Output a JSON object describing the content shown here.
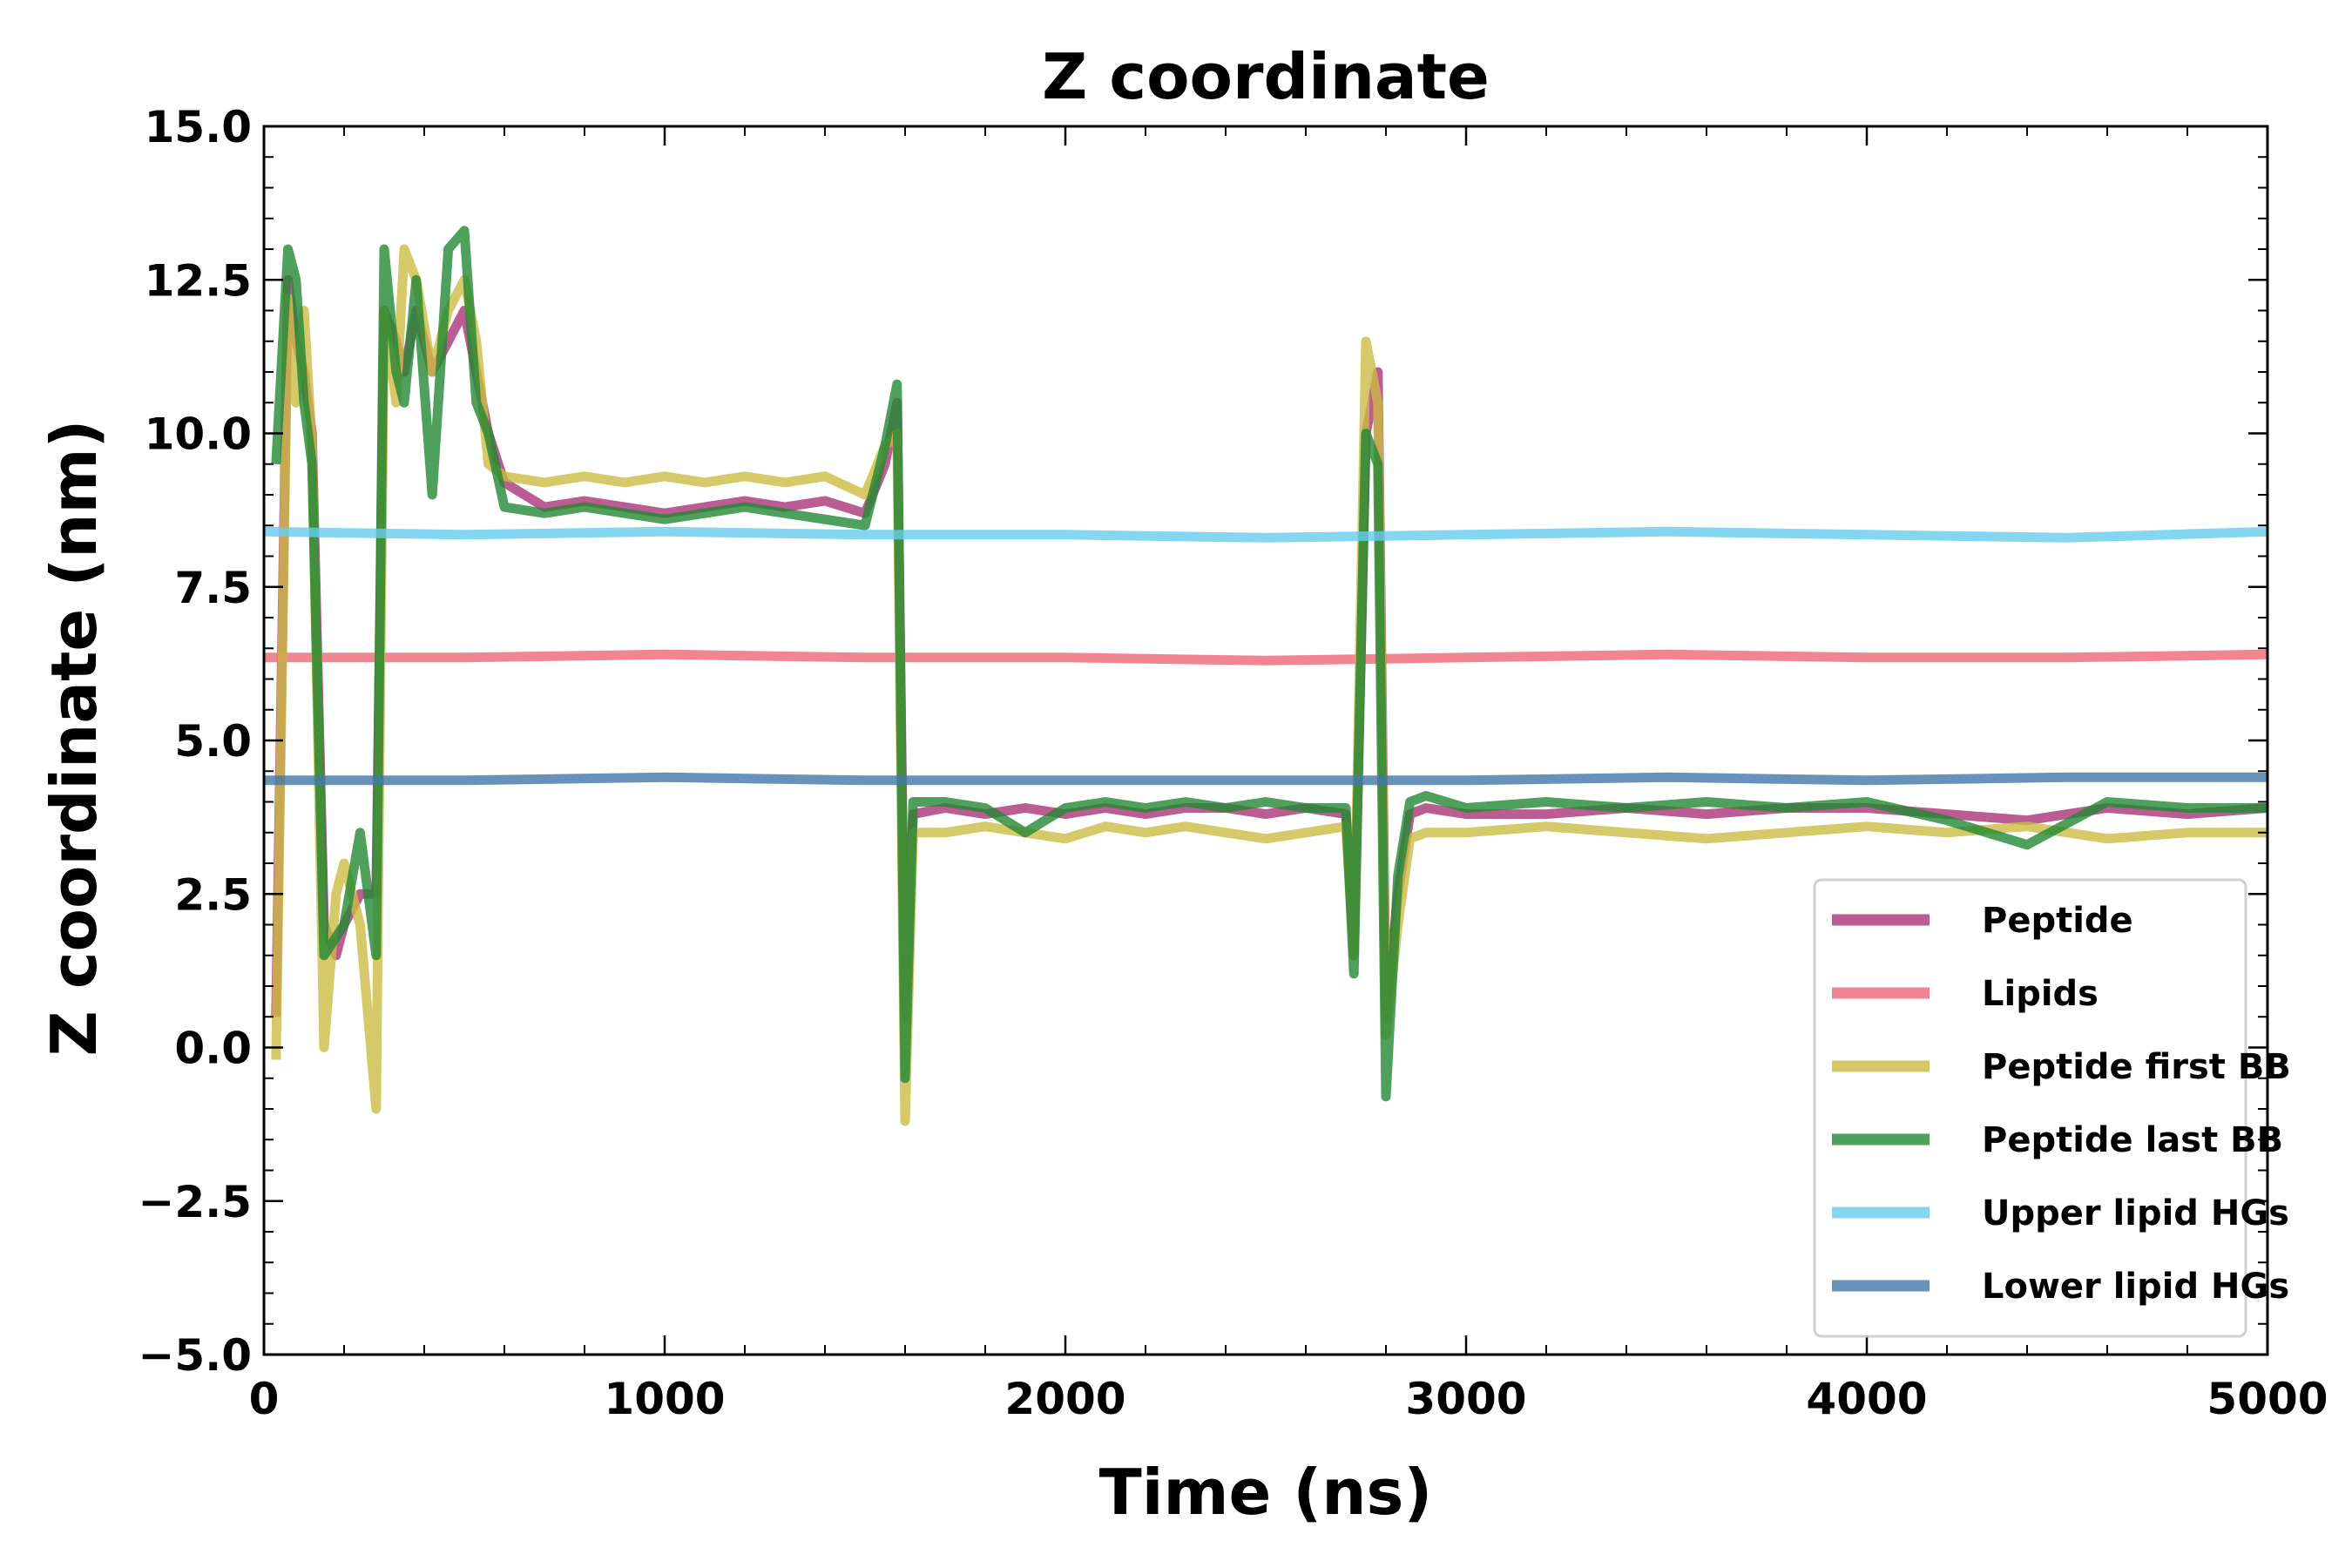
{
  "chart_data": {
    "type": "line",
    "title": "Z coordinate",
    "xlabel": "Time (ns)",
    "ylabel": "Z coordinate (nm)",
    "xlim": [
      0,
      5000
    ],
    "ylim": [
      -5.0,
      15.0
    ],
    "x_ticks": [
      0,
      1000,
      2000,
      3000,
      4000,
      5000
    ],
    "x_tick_labels": [
      "0",
      "1000",
      "2000",
      "3000",
      "4000",
      "5000"
    ],
    "y_ticks": [
      -5.0,
      -2.5,
      0.0,
      2.5,
      5.0,
      7.5,
      10.0,
      12.5,
      15.0
    ],
    "y_tick_labels": [
      "−5.0",
      "−2.5",
      "0.0",
      "2.5",
      "5.0",
      "7.5",
      "10.0",
      "12.5",
      "15.0"
    ],
    "grid": false,
    "legend_position": "lower-right",
    "series": [
      {
        "name": "Peptide",
        "color": "#aa3377",
        "x": [
          30,
          60,
          80,
          100,
          120,
          150,
          180,
          200,
          240,
          280,
          300,
          330,
          350,
          380,
          420,
          460,
          500,
          530,
          560,
          600,
          700,
          800,
          900,
          1000,
          1100,
          1200,
          1300,
          1400,
          1500,
          1550,
          1580,
          1600,
          1620,
          1700,
          1800,
          1900,
          2000,
          2100,
          2200,
          2300,
          2400,
          2500,
          2600,
          2700,
          2720,
          2750,
          2780,
          2800,
          2830,
          2860,
          2900,
          3000,
          3200,
          3400,
          3600,
          3800,
          4000,
          4200,
          4400,
          4600,
          4800,
          5000
        ],
        "y": [
          0.5,
          12.5,
          11.5,
          11.0,
          10.0,
          2.0,
          1.5,
          2.0,
          2.5,
          2.5,
          12.0,
          11.5,
          11.0,
          12.0,
          11.0,
          11.5,
          12.0,
          11.0,
          10.0,
          9.2,
          8.8,
          8.9,
          8.8,
          8.7,
          8.8,
          8.9,
          8.8,
          8.9,
          8.7,
          9.5,
          10.5,
          0.5,
          3.8,
          3.9,
          3.8,
          3.9,
          3.8,
          3.9,
          3.8,
          3.9,
          3.9,
          3.8,
          3.9,
          3.8,
          1.5,
          10.0,
          11.0,
          0.5,
          2.5,
          3.8,
          3.9,
          3.8,
          3.8,
          3.9,
          3.8,
          3.9,
          3.9,
          3.8,
          3.7,
          3.9,
          3.8,
          3.9
        ]
      },
      {
        "name": "Lipids",
        "color": "#ee6677",
        "x": [
          0,
          500,
          1000,
          1500,
          2000,
          2500,
          3000,
          3500,
          4000,
          4500,
          5000
        ],
        "y": [
          6.35,
          6.35,
          6.4,
          6.35,
          6.35,
          6.3,
          6.35,
          6.4,
          6.35,
          6.35,
          6.4
        ]
      },
      {
        "name": "Peptide first BB",
        "color": "#ccbb44",
        "x": [
          30,
          60,
          80,
          100,
          120,
          150,
          180,
          200,
          240,
          280,
          300,
          330,
          350,
          380,
          420,
          460,
          500,
          530,
          560,
          600,
          700,
          800,
          900,
          1000,
          1100,
          1200,
          1300,
          1400,
          1500,
          1550,
          1580,
          1600,
          1620,
          1700,
          1800,
          1900,
          2000,
          2100,
          2200,
          2300,
          2400,
          2500,
          2600,
          2700,
          2720,
          2750,
          2780,
          2800,
          2830,
          2860,
          2900,
          3000,
          3200,
          3400,
          3600,
          3800,
          4000,
          4200,
          4400,
          4600,
          4800,
          5000
        ],
        "y": [
          -0.2,
          12.2,
          10.5,
          12.0,
          9.8,
          0.0,
          2.5,
          3.0,
          2.0,
          -1.0,
          12.0,
          10.5,
          13.0,
          12.5,
          11.0,
          12.0,
          12.5,
          11.5,
          9.5,
          9.3,
          9.2,
          9.3,
          9.2,
          9.3,
          9.2,
          9.3,
          9.2,
          9.3,
          9.0,
          9.8,
          10.0,
          -1.2,
          3.5,
          3.5,
          3.6,
          3.5,
          3.4,
          3.6,
          3.5,
          3.6,
          3.5,
          3.4,
          3.5,
          3.6,
          1.5,
          11.5,
          10.5,
          0.2,
          2.0,
          3.4,
          3.5,
          3.5,
          3.6,
          3.5,
          3.4,
          3.5,
          3.6,
          3.5,
          3.6,
          3.4,
          3.5,
          3.5
        ]
      },
      {
        "name": "Peptide last BB",
        "color": "#228833",
        "x": [
          30,
          60,
          80,
          100,
          120,
          150,
          180,
          200,
          240,
          280,
          300,
          330,
          350,
          380,
          420,
          460,
          500,
          530,
          560,
          600,
          700,
          800,
          900,
          1000,
          1100,
          1200,
          1300,
          1400,
          1500,
          1550,
          1580,
          1600,
          1620,
          1700,
          1800,
          1900,
          2000,
          2100,
          2200,
          2300,
          2400,
          2500,
          2600,
          2700,
          2720,
          2750,
          2780,
          2800,
          2830,
          2860,
          2900,
          3000,
          3200,
          3400,
          3600,
          3800,
          4000,
          4200,
          4400,
          4600,
          4800,
          5000
        ],
        "y": [
          9.5,
          13.0,
          12.5,
          10.5,
          9.5,
          1.5,
          1.8,
          2.0,
          3.5,
          1.5,
          13.0,
          11.0,
          10.5,
          12.5,
          9.0,
          13.0,
          13.3,
          10.5,
          10.0,
          8.8,
          8.7,
          8.8,
          8.7,
          8.6,
          8.7,
          8.8,
          8.7,
          8.6,
          8.5,
          9.8,
          10.8,
          -0.5,
          4.0,
          4.0,
          3.9,
          3.5,
          3.9,
          4.0,
          3.9,
          4.0,
          3.9,
          4.0,
          3.9,
          3.9,
          1.2,
          10.0,
          9.5,
          -0.8,
          2.8,
          4.0,
          4.1,
          3.9,
          4.0,
          3.9,
          4.0,
          3.9,
          4.0,
          3.7,
          3.3,
          4.0,
          3.9,
          3.9
        ]
      },
      {
        "name": "Upper lipid HGs",
        "color": "#66ccee",
        "x": [
          0,
          500,
          1000,
          1500,
          2000,
          2500,
          3000,
          3500,
          4000,
          4500,
          5000
        ],
        "y": [
          8.4,
          8.35,
          8.4,
          8.35,
          8.35,
          8.3,
          8.35,
          8.4,
          8.35,
          8.3,
          8.4
        ]
      },
      {
        "name": "Lower lipid HGs",
        "color": "#4477aa",
        "x": [
          0,
          500,
          1000,
          1500,
          2000,
          2500,
          3000,
          3500,
          4000,
          4500,
          5000
        ],
        "y": [
          4.35,
          4.35,
          4.4,
          4.35,
          4.35,
          4.35,
          4.35,
          4.4,
          4.35,
          4.4,
          4.4
        ]
      }
    ]
  }
}
